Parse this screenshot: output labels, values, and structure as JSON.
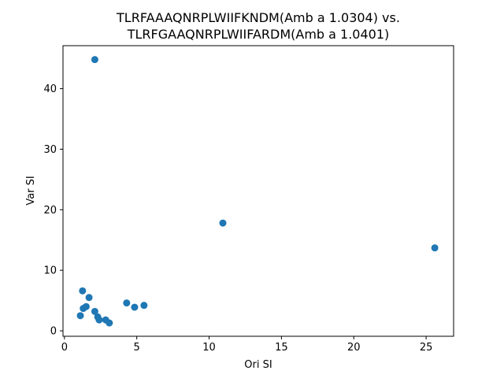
{
  "chart_data": {
    "type": "scatter",
    "title_line1": "TLRFAAAQNRPLWIIFKNDM(Amb a 1.0304) vs.",
    "title_line2": "TLRFGAAQNRPLWIIFARDM(Amb a 1.0401)",
    "xlabel": "Ori SI",
    "ylabel": "Var SI",
    "xlim": [
      -0.1,
      26.9
    ],
    "ylim": [
      -0.9,
      47.1
    ],
    "xticks": [
      0,
      5,
      10,
      15,
      20,
      25
    ],
    "yticks": [
      0,
      10,
      20,
      30,
      40
    ],
    "grid": false,
    "marker_color": "#1f77b4",
    "points": [
      {
        "x": 1.1,
        "y": 2.5
      },
      {
        "x": 1.25,
        "y": 6.6
      },
      {
        "x": 1.3,
        "y": 3.7
      },
      {
        "x": 1.5,
        "y": 4.0
      },
      {
        "x": 1.7,
        "y": 5.5
      },
      {
        "x": 2.1,
        "y": 3.2
      },
      {
        "x": 2.1,
        "y": 44.8
      },
      {
        "x": 2.3,
        "y": 2.3
      },
      {
        "x": 2.4,
        "y": 1.8
      },
      {
        "x": 2.85,
        "y": 1.8
      },
      {
        "x": 3.1,
        "y": 1.3
      },
      {
        "x": 4.3,
        "y": 4.6
      },
      {
        "x": 4.85,
        "y": 3.9
      },
      {
        "x": 5.5,
        "y": 4.2
      },
      {
        "x": 10.95,
        "y": 17.8
      },
      {
        "x": 25.6,
        "y": 13.7
      }
    ]
  }
}
